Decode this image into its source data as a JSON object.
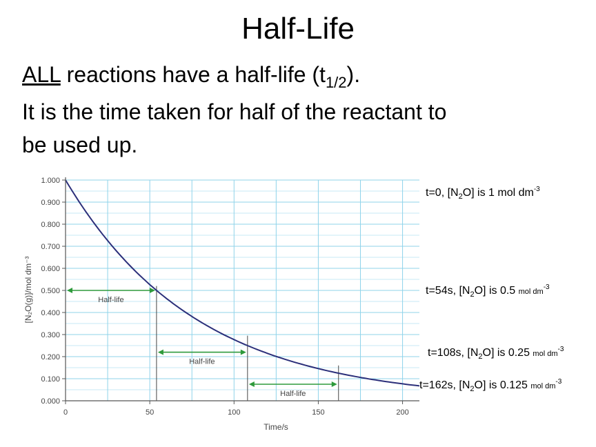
{
  "slide": {
    "title": "Half-Life",
    "line1_underlined": "ALL",
    "line1_text": " reactions have a half-life (t",
    "line1_sub": "1/2",
    "line1_end": ").",
    "line2": "It is the time taken for half of the reactant to",
    "line3": "be used up."
  },
  "annotations": [
    {
      "pre": "t=0, [N",
      "sub": "2",
      "mid": "O] is 1 mol dm",
      "sup": "-3",
      "unit": ""
    },
    {
      "pre": "t=54s, [N",
      "sub": "2",
      "mid": "O] is 0.5 ",
      "sup": "-3",
      "unit": "mol dm"
    },
    {
      "pre": "t=108s, [N",
      "sub": "2",
      "mid": "O] is 0.25 ",
      "sup": "-3",
      "unit": "mol dm"
    },
    {
      "pre": "t=162s, [N",
      "sub": "2",
      "mid": "O] is 0.125 ",
      "sup": "-3",
      "unit": "mol dm"
    }
  ],
  "colors": {
    "grid": "#8fd3ea",
    "curve": "#2b2f7a",
    "arrow": "#2e9a3b",
    "axis": "#555555",
    "marker": "#444444"
  },
  "chart_data": {
    "type": "line",
    "xlabel": "Time/s",
    "ylabel": "[N₂O(g)]/mol dm⁻³",
    "xlim": [
      0,
      210
    ],
    "ylim": [
      0,
      1.0
    ],
    "x_ticks": [
      "0",
      "50",
      "100",
      "150",
      "200"
    ],
    "y_ticks": [
      "0.000",
      "0.100",
      "0.200",
      "0.300",
      "0.400",
      "0.500",
      "0.600",
      "0.700",
      "0.800",
      "0.900",
      "1.000"
    ],
    "grid": true,
    "series": [
      {
        "x": [
          0,
          10,
          20,
          30,
          40,
          54,
          60,
          70,
          80,
          90,
          108,
          120,
          130,
          140,
          150,
          162,
          170,
          180,
          190,
          200,
          210
        ],
        "values": [
          1.0,
          0.88,
          0.774,
          0.68,
          0.598,
          0.5,
          0.463,
          0.407,
          0.358,
          0.315,
          0.25,
          0.214,
          0.188,
          0.166,
          0.146,
          0.125,
          0.113,
          0.099,
          0.087,
          0.077,
          0.068
        ]
      }
    ],
    "half_life_markers": [
      {
        "label": "Half-life",
        "from_x": 0,
        "to_x": 54,
        "y": 0.5
      },
      {
        "label": "Half-life",
        "from_x": 54,
        "to_x": 108,
        "y": 0.22
      },
      {
        "label": "Half-life",
        "from_x": 108,
        "to_x": 162,
        "y": 0.075
      }
    ],
    "vertical_lines": [
      {
        "x": 54,
        "top": 0.52
      },
      {
        "x": 108,
        "top": 0.295
      },
      {
        "x": 162,
        "top": 0.16
      }
    ]
  }
}
